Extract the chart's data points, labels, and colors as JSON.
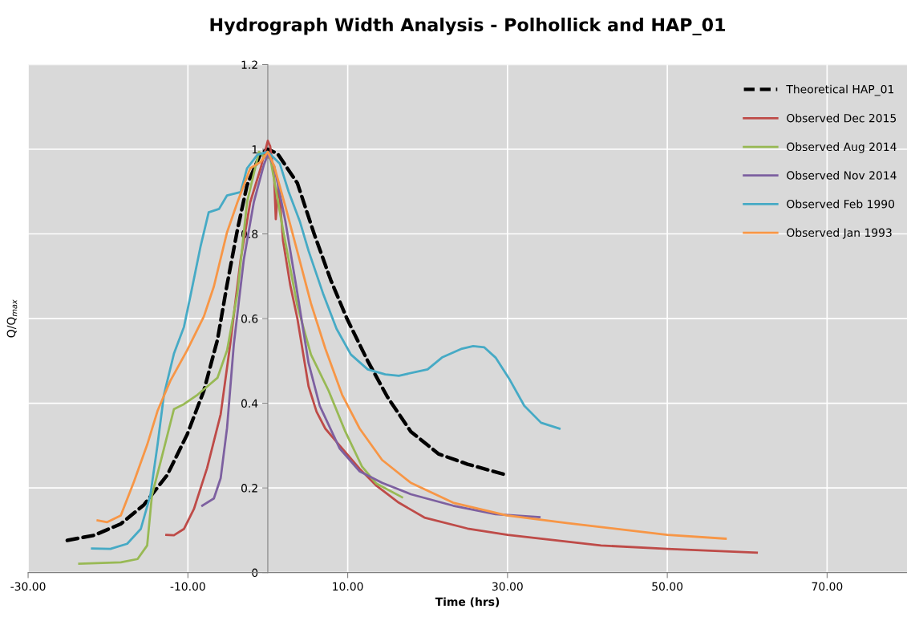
{
  "chart_data": {
    "type": "line",
    "title": "Hydrograph Width Analysis - Polhollick and HAP_01",
    "xlabel": "Time (hrs)",
    "ylabel": "Q/Q$_{max}$",
    "xlim": [
      -30,
      80
    ],
    "xticks": [
      {
        "value": -30,
        "label": "-30.00"
      },
      {
        "value": -10,
        "label": "-10.00"
      },
      {
        "value": 10,
        "label": "10.00"
      },
      {
        "value": 30,
        "label": "30.00"
      },
      {
        "value": 50,
        "label": "50.00"
      },
      {
        "value": 70,
        "label": "70.00"
      }
    ],
    "ylim": [
      0,
      1.2
    ],
    "yticks": [
      0,
      0.2,
      0.4,
      0.6,
      0.8,
      1,
      1.2
    ],
    "grid": true,
    "legend": "top right",
    "marker": "none",
    "series": [
      {
        "name": "Theoretical HAP_01",
        "color": "#000000",
        "line_style": "dashed",
        "x": [
          -25.1,
          -21.75,
          -18.4,
          -15.5,
          -12.6,
          -10.1,
          -8,
          -6.3,
          -5.1,
          -3.8,
          -2.6,
          -0.9,
          0,
          1.2,
          3.7,
          5.8,
          7.9,
          9.9,
          12.5,
          15,
          17.9,
          21.4,
          25,
          29.6
        ],
        "values": [
          0.076,
          0.088,
          0.115,
          0.16,
          0.23,
          0.326,
          0.43,
          0.55,
          0.68,
          0.81,
          0.915,
          0.99,
          1.0,
          0.99,
          0.92,
          0.8,
          0.69,
          0.6,
          0.5,
          0.414,
          0.333,
          0.28,
          0.256,
          0.232
        ]
      },
      {
        "name": "Observed Dec 2015",
        "color": "#be4b48",
        "line_style": "solid",
        "x": [
          -12.7,
          -11.75,
          -10.5,
          -9.25,
          -7.6,
          -5.9,
          -4.7,
          -3.4,
          -2.2,
          -0.9,
          0,
          0.3,
          0.8,
          1.0,
          1.35,
          1.9,
          2.8,
          3.7,
          5.1,
          6.1,
          7.2,
          9,
          11.5,
          13.6,
          16.4,
          19.6,
          25,
          30,
          41.7,
          50,
          61.2
        ],
        "values": [
          0.089,
          0.088,
          0.103,
          0.15,
          0.247,
          0.374,
          0.54,
          0.74,
          0.875,
          0.955,
          1.02,
          1.007,
          0.93,
          0.835,
          0.92,
          0.785,
          0.68,
          0.6,
          0.44,
          0.38,
          0.34,
          0.3,
          0.245,
          0.205,
          0.165,
          0.13,
          0.104,
          0.089,
          0.064,
          0.056,
          0.047
        ]
      },
      {
        "name": "Observed Aug 2014",
        "color": "#98b954",
        "line_style": "solid",
        "x": [
          -23.6,
          -18.4,
          -16.3,
          -15.1,
          -14.5,
          -13.4,
          -11.75,
          -10.5,
          -8.8,
          -6.3,
          -5.1,
          -3.8,
          -2.6,
          -1.1,
          -0.3,
          0.3,
          1.9,
          3.7,
          5.4,
          7.6,
          9.7,
          11.8,
          13.6,
          16.8
        ],
        "values": [
          0.021,
          0.024,
          0.032,
          0.064,
          0.183,
          0.263,
          0.386,
          0.398,
          0.42,
          0.46,
          0.525,
          0.66,
          0.875,
          0.994,
          0.98,
          0.98,
          0.81,
          0.63,
          0.515,
          0.43,
          0.333,
          0.25,
          0.21,
          0.178
        ]
      },
      {
        "name": "Observed Nov 2014",
        "color": "#7d60a0",
        "line_style": "solid",
        "x": [
          -8.2,
          -6.75,
          -5.9,
          -5.1,
          -4.25,
          -3,
          -1.75,
          -0.5,
          0,
          0.8,
          2.2,
          3.7,
          5.1,
          6.5,
          9,
          11.5,
          14.3,
          17.9,
          23.2,
          28.5,
          34
        ],
        "values": [
          0.158,
          0.175,
          0.223,
          0.342,
          0.54,
          0.74,
          0.875,
          0.963,
          0.987,
          0.96,
          0.83,
          0.66,
          0.495,
          0.394,
          0.293,
          0.239,
          0.212,
          0.185,
          0.158,
          0.138,
          0.131
        ]
      },
      {
        "name": "Observed Feb 1990",
        "color": "#46aac5",
        "line_style": "solid",
        "x": [
          -22,
          -19.7,
          -17.6,
          -15.9,
          -14.7,
          -13.8,
          -13,
          -11.75,
          -10.5,
          -9.7,
          -8.4,
          -7.4,
          -6.1,
          -5.1,
          -3.4,
          -2.6,
          -1.3,
          0,
          1.5,
          2.6,
          4,
          5.1,
          6.9,
          8.6,
          10.4,
          12.5,
          14.7,
          16.4,
          20,
          21.8,
          24.3,
          25.7,
          27.1,
          28.5,
          30.3,
          32.1,
          34.2,
          36.5
        ],
        "values": [
          0.057,
          0.056,
          0.068,
          0.103,
          0.183,
          0.302,
          0.42,
          0.517,
          0.58,
          0.652,
          0.772,
          0.851,
          0.859,
          0.891,
          0.899,
          0.955,
          0.987,
          0.994,
          0.966,
          0.9,
          0.83,
          0.76,
          0.66,
          0.576,
          0.515,
          0.48,
          0.468,
          0.465,
          0.48,
          0.508,
          0.529,
          0.535,
          0.532,
          0.508,
          0.455,
          0.394,
          0.354,
          0.34
        ]
      },
      {
        "name": "Observed Jan 1993",
        "color": "#f79646",
        "line_style": "solid",
        "x": [
          -21.3,
          -20.1,
          -18.4,
          -16.75,
          -15.1,
          -13.8,
          -12.2,
          -10.1,
          -8,
          -6.75,
          -5.1,
          -3.8,
          -2.2,
          -0.9,
          0,
          0.8,
          2.2,
          3.7,
          5.4,
          7.2,
          9.3,
          11.5,
          14.3,
          17.9,
          23.2,
          29.9,
          37.4,
          50,
          57.3
        ],
        "values": [
          0.123,
          0.119,
          0.135,
          0.215,
          0.302,
          0.382,
          0.453,
          0.525,
          0.605,
          0.676,
          0.804,
          0.875,
          0.955,
          0.97,
          0.994,
          0.96,
          0.865,
          0.758,
          0.636,
          0.529,
          0.42,
          0.34,
          0.266,
          0.212,
          0.165,
          0.135,
          0.117,
          0.089,
          0.08
        ]
      }
    ]
  }
}
